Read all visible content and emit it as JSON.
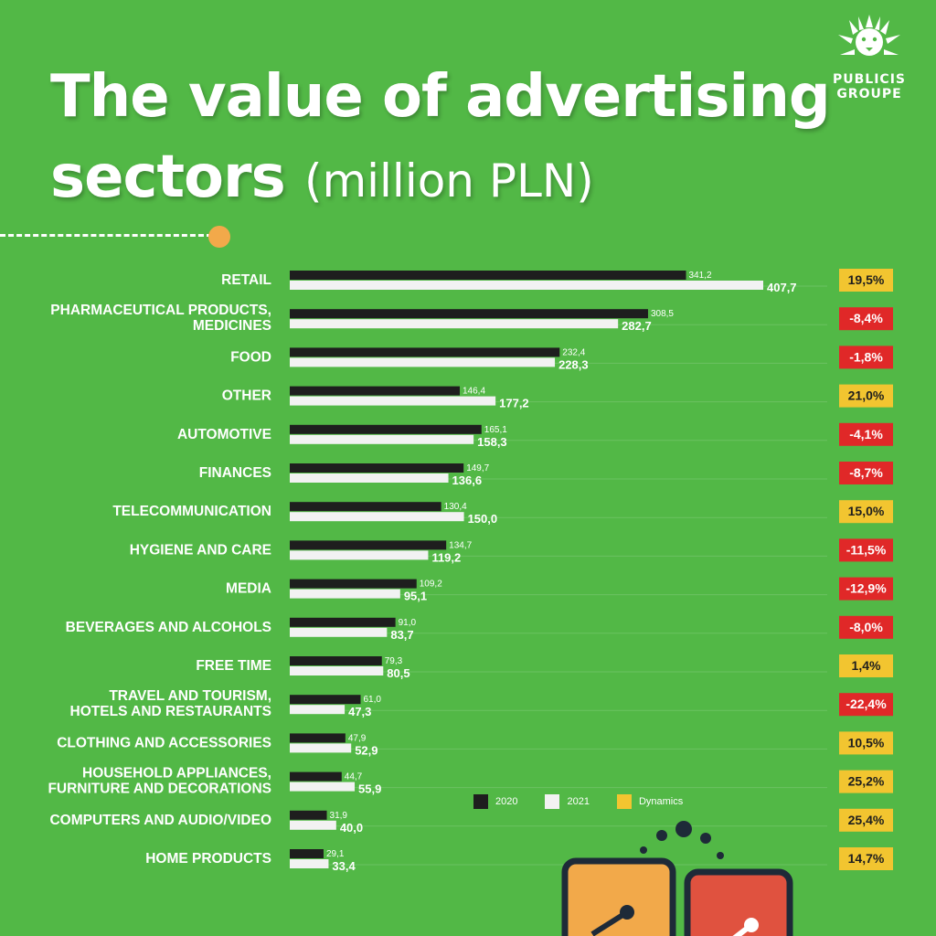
{
  "title": {
    "main_line1": "The value of advertising",
    "main_line2": "sectors",
    "unit": "(million PLN)"
  },
  "brand": {
    "line1": "PUBLICIS",
    "line2": "GROUPE"
  },
  "colors": {
    "background": "#52b846",
    "bar_2020": "#1e1e1e",
    "bar_2021": "#f2f2f2",
    "positive": "#f2c530",
    "negative": "#e02828",
    "accent_dot": "#f2a94a"
  },
  "legend": [
    {
      "label": "2020",
      "color": "#1e1e1e"
    },
    {
      "label": "2021",
      "color": "#f2f2f2"
    },
    {
      "label": "Dynamics",
      "color": "#f2c530"
    }
  ],
  "chart_data": {
    "type": "bar",
    "orientation": "horizontal",
    "categories": [
      [
        "RETAIL"
      ],
      [
        "PHARMACEUTICAL PRODUCTS,",
        "MEDICINES"
      ],
      [
        "FOOD"
      ],
      [
        "OTHER"
      ],
      [
        "AUTOMOTIVE"
      ],
      [
        "FINANCES"
      ],
      [
        "TELECOMMUNICATION"
      ],
      [
        "HYGIENE AND CARE"
      ],
      [
        "MEDIA"
      ],
      [
        "BEVERAGES AND ALCOHOLS"
      ],
      [
        "FREE TIME"
      ],
      [
        "TRAVEL AND TOURISM,",
        "HOTELS AND RESTAURANTS"
      ],
      [
        "CLOTHING AND ACCESSORIES"
      ],
      [
        "HOUSEHOLD APPLIANCES,",
        "FURNITURE AND DECORATIONS"
      ],
      [
        "COMPUTERS AND AUDIO/VIDEO"
      ],
      [
        "HOME PRODUCTS"
      ]
    ],
    "series": [
      {
        "name": "2020",
        "values": [
          341.2,
          308.5,
          232.4,
          146.4,
          165.1,
          149.7,
          130.4,
          134.7,
          109.2,
          91.0,
          79.3,
          61.0,
          47.9,
          44.7,
          31.9,
          29.1
        ],
        "labels": [
          "341,2",
          "308,5",
          "232,4",
          "146,4",
          "165,1",
          "149,7",
          "130,4",
          "134,7",
          "109,2",
          "91,0",
          "79,3",
          "61,0",
          "47,9",
          "44,7",
          "31,9",
          "29,1"
        ]
      },
      {
        "name": "2021",
        "values": [
          407.7,
          282.7,
          228.3,
          177.2,
          158.3,
          136.6,
          150.0,
          119.2,
          95.1,
          83.7,
          80.5,
          47.3,
          52.9,
          55.9,
          40.0,
          33.4
        ],
        "labels": [
          "407,7",
          "282,7",
          "228,3",
          "177,2",
          "158,3",
          "136,6",
          "150,0",
          "119,2",
          "95,1",
          "83,7",
          "80,5",
          "47,3",
          "52,9",
          "55,9",
          "40,0",
          "33,4"
        ]
      }
    ],
    "dynamics": [
      "19,5%",
      "-8,4%",
      "-1,8%",
      "21,0%",
      "-4,1%",
      "-8,7%",
      "15,0%",
      "-11,5%",
      "-12,9%",
      "-8,0%",
      "1,4%",
      "-22,4%",
      "10,5%",
      "25,2%",
      "25,4%",
      "14,7%"
    ],
    "dynamics_values": [
      19.5,
      -8.4,
      -1.8,
      21.0,
      -4.1,
      -8.7,
      15.0,
      -11.5,
      -12.9,
      -8.0,
      1.4,
      -22.4,
      10.5,
      25.2,
      25.4,
      14.7
    ],
    "xlim": [
      0,
      407.7
    ],
    "grid": true,
    "legend_position": "bottom-right"
  }
}
